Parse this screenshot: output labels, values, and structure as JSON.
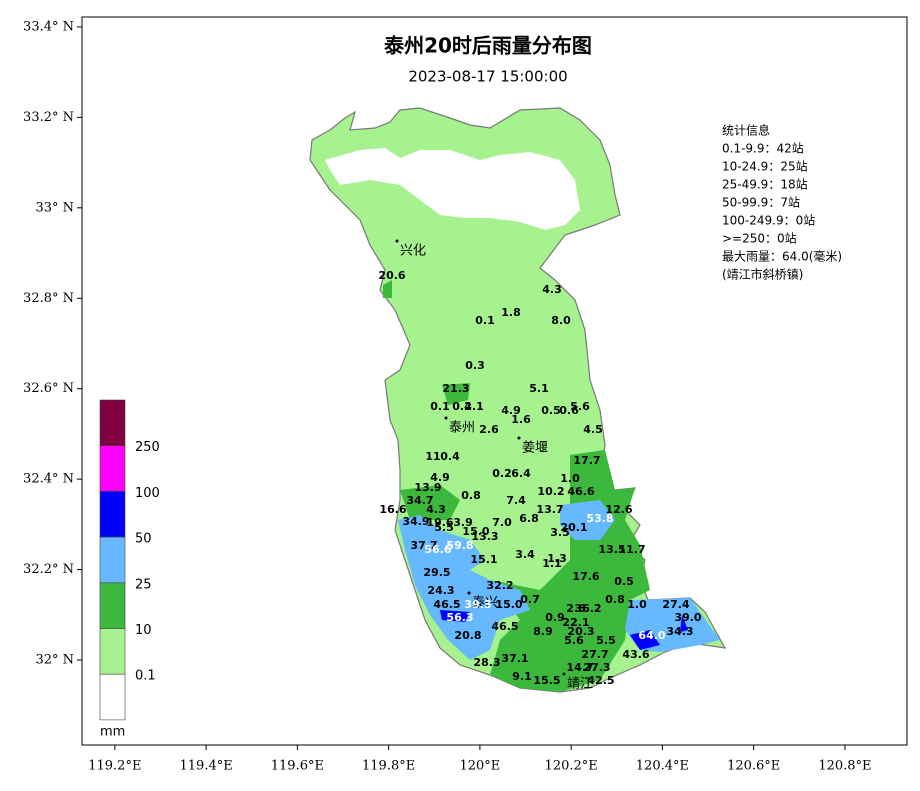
{
  "title": "泰州20时后雨量分布图",
  "subtitle": "2023-08-17 15:00:00",
  "lon_range": [
    119.128,
    120.936
  ],
  "lat_range": [
    31.812,
    33.422
  ],
  "xticks": [
    {
      "value": 119.2,
      "label": "119.2°E"
    },
    {
      "value": 119.4,
      "label": "119.4°E"
    },
    {
      "value": 119.6,
      "label": "119.6°E"
    },
    {
      "value": 119.8,
      "label": "119.8°E"
    },
    {
      "value": 120,
      "label": "120°E"
    },
    {
      "value": 120.2,
      "label": "120.2°E"
    },
    {
      "value": 120.4,
      "label": "120.4°E"
    },
    {
      "value": 120.6,
      "label": "120.6°E"
    },
    {
      "value": 120.8,
      "label": "120.8°E"
    }
  ],
  "yticks": [
    {
      "value": 33.4,
      "label": "33.4° N"
    },
    {
      "value": 33.2,
      "label": "33.2° N"
    },
    {
      "value": 33,
      "label": "33° N"
    },
    {
      "value": 32.8,
      "label": "32.8° N"
    },
    {
      "value": 32.6,
      "label": "32.6° N"
    },
    {
      "value": 32.4,
      "label": "32.4° N"
    },
    {
      "value": 32.2,
      "label": "32.2° N"
    },
    {
      "value": 32,
      "label": "32° N"
    }
  ],
  "stats": [
    "统计信息",
    "0.1-9.9：42站",
    "10-24.9：25站",
    "25-49.9：18站",
    "50-99.9：7站",
    "100-249.9：0站",
    ">=250：0站",
    "最大雨量：64.0(毫米)",
    "(靖江市斜桥镇)"
  ],
  "cities": [
    "兴化",
    "泰州",
    "姜堰",
    "泰兴",
    "靖江"
  ],
  "legend": {
    "unit": "mm",
    "labels": [
      "250",
      "100",
      "50",
      "25",
      "10",
      "0.1"
    ],
    "colors": [
      "#800040",
      "#ff00ff",
      "#0000ff",
      "#66b8ff",
      "#3cb83c",
      "#a6f28e",
      "#ffffff"
    ]
  },
  "stations": [
    "20.6",
    "4.3",
    "1.8",
    "0.1",
    "8.0",
    "0.3",
    "21.3",
    "5.1",
    "0.1",
    "0.4",
    "2.1",
    "4.9",
    "0.5",
    "0.6",
    "5.6",
    "1.6",
    "2.6",
    "4.5",
    "11",
    "0.4",
    "17.7",
    "0.2",
    "6.4",
    "4.9",
    "1.0",
    "13.9",
    "10.2",
    "46.6",
    "0.8",
    "34.7",
    "7.4",
    "16.6",
    "4.3",
    "13.7",
    "12.6",
    "6.8",
    "53.8",
    "34.9",
    "19.6",
    "3.9",
    "7.0",
    "20.1",
    "5.5",
    "15.0",
    "13.3",
    "3.5",
    "37.7",
    "56.6",
    "59.8",
    "15.1",
    "3.4",
    "1.3",
    "13.5",
    "11.7",
    "1.1",
    "29.5",
    "17.6",
    "0.5",
    "32.2",
    "24.3",
    "46.5",
    "39.3",
    "15.0",
    "0.7",
    "0.8",
    "27.4",
    "2.6",
    "36.2",
    "0.9",
    "22.1",
    "56.3",
    "39.0",
    "46.5",
    "8.9",
    "20.3",
    "1.0",
    "34.3",
    "20.8",
    "64.0",
    "5.5",
    "5.6",
    "43.6",
    "27.7",
    "37.1",
    "28.3",
    "14.7",
    "27.3",
    "9.1",
    "15.5",
    "42.5"
  ]
}
